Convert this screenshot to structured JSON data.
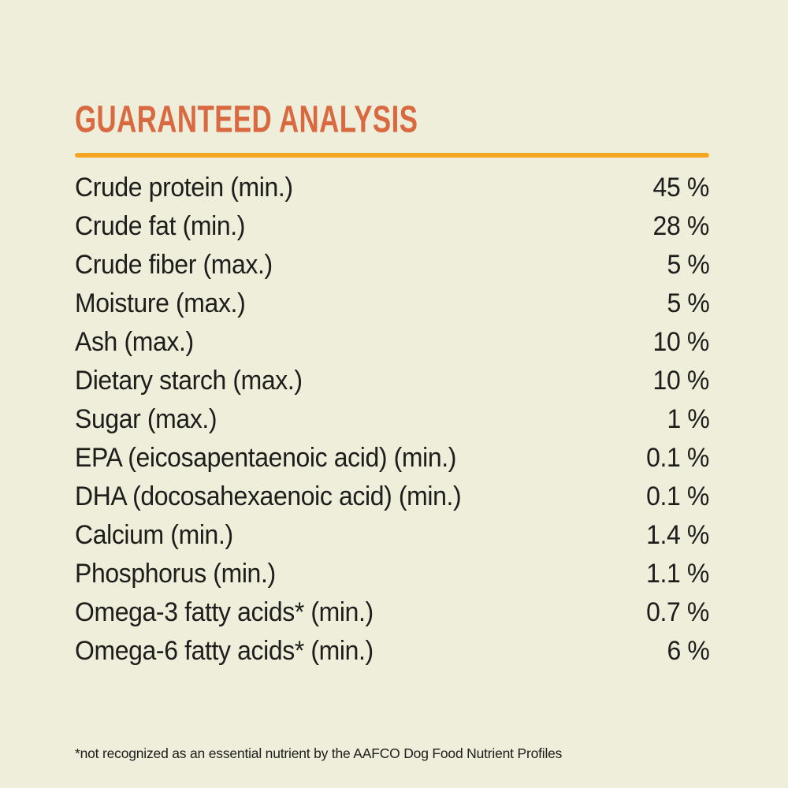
{
  "page": {
    "background_color": "#efeedb",
    "text_color": "#1d1d1b"
  },
  "header": {
    "title": "GUARANTEED ANALYSIS",
    "title_color": "#d96940",
    "rule_color": "#f6a623"
  },
  "table": {
    "rows": [
      {
        "label": "Crude protein (min.)",
        "value": "45 %"
      },
      {
        "label": "Crude fat (min.)",
        "value": "28 %"
      },
      {
        "label": "Crude fiber (max.)",
        "value": "5 %"
      },
      {
        "label": "Moisture (max.)",
        "value": "5 %"
      },
      {
        "label": "Ash (max.)",
        "value": "10 %"
      },
      {
        "label": "Dietary starch (max.)",
        "value": "10 %"
      },
      {
        "label": "Sugar (max.)",
        "value": "1 %"
      },
      {
        "label": "EPA (eicosapentaenoic acid) (min.)",
        "value": "0.1 %"
      },
      {
        "label": "DHA (docosahexaenoic acid) (min.)",
        "value": "0.1 %"
      },
      {
        "label": "Calcium (min.)",
        "value": "1.4 %"
      },
      {
        "label": "Phosphorus (min.)",
        "value": "1.1 %"
      },
      {
        "label": "Omega-3 fatty acids* (min.)",
        "value": "0.7 %"
      },
      {
        "label": "Omega-6 fatty acids* (min.)",
        "value": "6 %"
      }
    ]
  },
  "footnote": {
    "text": "*not recognized as an essential nutrient by the AAFCO Dog Food Nutrient Profiles"
  }
}
